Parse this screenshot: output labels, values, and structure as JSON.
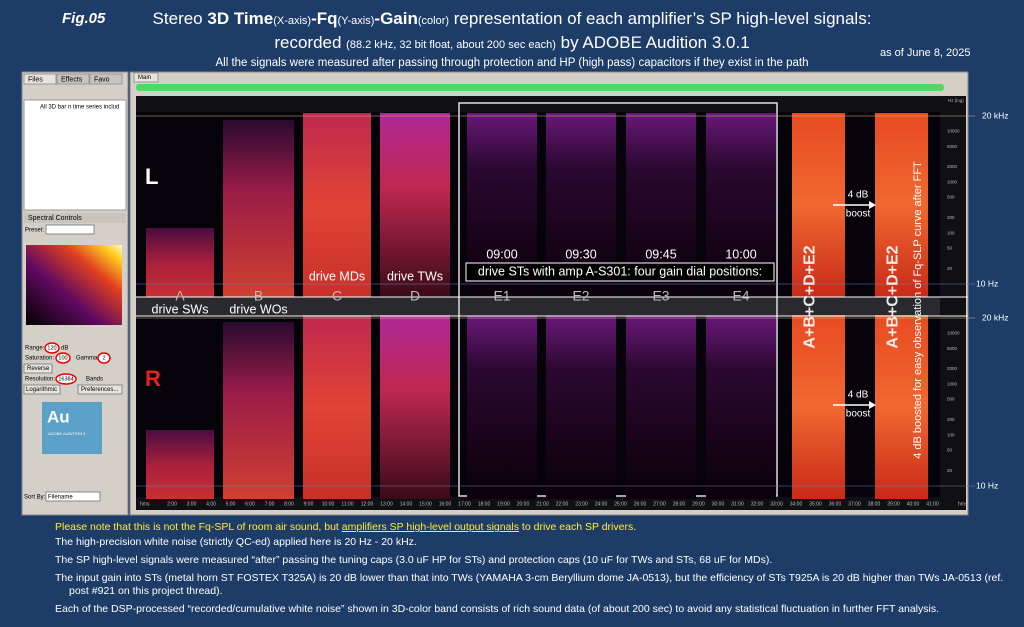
{
  "header": {
    "fig": "Fig.05",
    "title_parts": [
      "Stereo ",
      "3D Time",
      "(X-axis)",
      "-Fq",
      "(Y-axis)",
      "-Gain",
      "(color)",
      " representation of each amplifier’s SP high-level signals:"
    ],
    "subtitle_parts": [
      "recorded ",
      "(88.2 kHz, 32 bit float, about 200 sec each)",
      " by ADOBE Audition 3.0.1"
    ],
    "note": "All the signals were measured after passing through protection and HP (high pass) capacitors if they exist in the path",
    "date": "as of June 8, 2025"
  },
  "left_panel": {
    "tabs": [
      "Files",
      "Effects",
      "Favo"
    ],
    "file_item": "All 3D bar n time series includ",
    "spectral_title": "Spectral Controls",
    "preset": "Preset:",
    "range_label": "Range:",
    "range_value": "120",
    "range_unit": "dB",
    "saturation_label": "Saturation:",
    "saturation_value": "100",
    "gamma_label": "Gamma:",
    "gamma_value": "2",
    "reverse": "Reverse",
    "resolution_label": "Resolution:",
    "resolution_value": "16384",
    "resolution_unit": "Bands",
    "logarithmic": "Logarithmic",
    "preferences": "Preferences...",
    "logo": "Au",
    "logo_caption": "ADOBE AUDITION 3",
    "sort_label": "Sort By:",
    "sort_value": "Filename"
  },
  "main_panel": {
    "tab": "Main",
    "channels": [
      "L",
      "R"
    ],
    "bands": [
      {
        "label": "A",
        "caption": "drive SWs"
      },
      {
        "label": "B",
        "caption": "drive WOs"
      },
      {
        "label": "C",
        "caption": "drive MDs"
      },
      {
        "label": "D",
        "caption": "drive TWs"
      },
      {
        "label": "E1"
      },
      {
        "label": "E2"
      },
      {
        "label": "E3"
      },
      {
        "label": "E4"
      },
      {
        "label": "A+B+C+D+E2"
      },
      {
        "label": "A+B+C+D+E2"
      }
    ],
    "times": [
      "09:00",
      "09:30",
      "09:45",
      "10:00"
    ],
    "st_caption": "drive STs with amp A-S301: four gain dial positions:",
    "boost_value": "4 dB",
    "boost_word": "boost",
    "side_note": "4 dB boosted for easy observation of Fq-SLP curve after FFT",
    "freq_marks": [
      "20 kHz",
      "10 Hz"
    ],
    "axis_title": "Hz (log)",
    "freq_ticks": [
      "10000",
      "5000",
      "2000",
      "1000",
      "500",
      "200",
      "100",
      "50",
      "20"
    ],
    "time_unit": "hms",
    "time_ticks": [
      "2:00",
      "3:00",
      "4:00",
      "5:00",
      "6:00",
      "7:00",
      "8:00",
      "9:00",
      "10:00",
      "11:00",
      "12:00",
      "13:00",
      "14:00",
      "15:00",
      "16:00",
      "17:00",
      "18:00",
      "19:00",
      "20:00",
      "21:00",
      "22:00",
      "23:00",
      "24:00",
      "25:00",
      "26:00",
      "27:00",
      "28:00",
      "29:00",
      "30:00",
      "31:00",
      "32:00",
      "33:00",
      "34:00",
      "35:00",
      "36:00",
      "37:00",
      "38:00",
      "39:00",
      "40:00",
      "41:00"
    ]
  },
  "footer": {
    "first_parts": [
      "Please note that this is not the Fq-SPL of room air sound, but ",
      "amplifiers SP high-level output signals",
      " to drive each SP drivers."
    ],
    "paragraphs": [
      "The high-precision white noise (strictly QC-ed) applied here is 20 Hz - 20 kHz.",
      "The SP high-level signals were measured “after” passing the tuning caps (3.0 uF HP for STs) and protection caps (10 uF for TWs and STs, 68 uF for MDs).",
      "The input gain into STs (metal horn ST FOSTEX T325A) is 20 dB lower than that into TWs (YAMAHA 3-cm Beryllium dome JA-0513), but the efficiency of STs T925A is 20 dB higher than TWs JA-0513 (ref. post #921 on this project thread).",
      "Each of the DSP-processed “recorded/cumulative white noise” shown in 3D-color band consists of rich sound data (of about 200 sec) to avoid any statistical fluctuation in further FFT analysis."
    ]
  }
}
